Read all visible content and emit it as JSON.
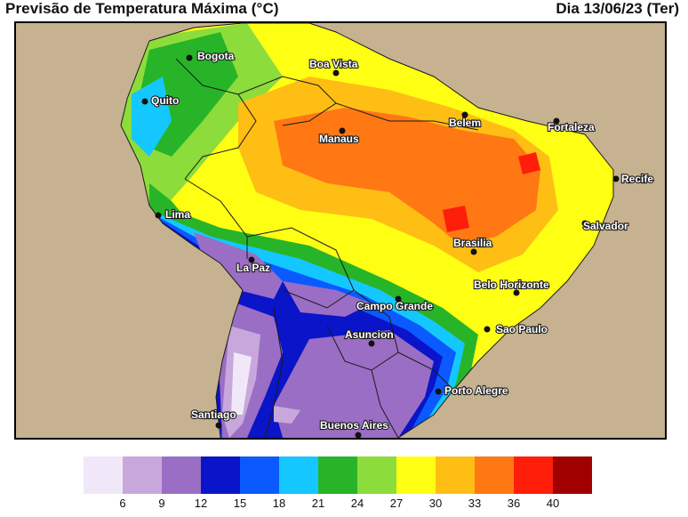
{
  "header": {
    "title": "Previsão de Temperatura Máxima (°C)",
    "date": "Dia 13/06/23 (Ter)"
  },
  "map": {
    "ocean_color": "#c6b291",
    "cities": [
      {
        "name": "Bogota"
      },
      {
        "name": "Boa Vista"
      },
      {
        "name": "Quito"
      },
      {
        "name": "Belem"
      },
      {
        "name": "Fortaleza"
      },
      {
        "name": "Manaus"
      },
      {
        "name": "Recife"
      },
      {
        "name": "Lima"
      },
      {
        "name": "Salvador"
      },
      {
        "name": "Brasilia"
      },
      {
        "name": "La Paz"
      },
      {
        "name": "Belo Horizonte"
      },
      {
        "name": "Campo Grande"
      },
      {
        "name": "Sao Paulo"
      },
      {
        "name": "Asuncion"
      },
      {
        "name": "Porto Alegre"
      },
      {
        "name": "Santiago"
      },
      {
        "name": "Buenos Aires"
      }
    ]
  },
  "legend": {
    "colors": [
      "#f0e8f8",
      "#c8a8dc",
      "#9a6ec4",
      "#0a14c8",
      "#0a5aff",
      "#14c8ff",
      "#28b428",
      "#8cdc3c",
      "#ffff14",
      "#ffbe14",
      "#ff7814",
      "#ff1e0a",
      "#a00000"
    ],
    "ticks": [
      "6",
      "9",
      "12",
      "15",
      "18",
      "21",
      "24",
      "27",
      "30",
      "33",
      "36",
      "40"
    ]
  }
}
